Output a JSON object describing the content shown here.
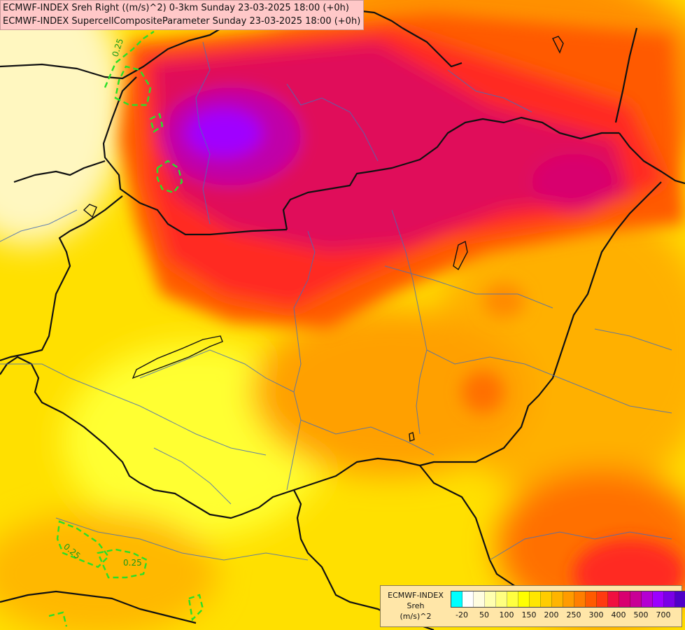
{
  "title": {
    "line1": "ECMWF-INDEX Sreh Right ((m/s)^2) 0-3km Sunday 23-03-2025 18:00 (+0h)",
    "line2": "ECMWF-INDEX SupercellCompositeParameter Sunday 23-03-2025 18:00 (+0h)"
  },
  "legend": {
    "name_line1": "ECMWF-INDEX",
    "name_line2": "Sreh",
    "name_line3": "(m/s)^2",
    "colors": [
      "#00ffff",
      "#ffffff",
      "#fffde0",
      "#ffffb0",
      "#ffff80",
      "#ffff40",
      "#ffff00",
      "#ffe600",
      "#ffcc00",
      "#ffb400",
      "#ff9b00",
      "#ff7e00",
      "#ff5a00",
      "#ff3a10",
      "#f01040",
      "#d80070",
      "#c80096",
      "#b400d2",
      "#9c00ff",
      "#7a00e6",
      "#5000c8",
      "#2800a0",
      "#000080"
    ],
    "ticks": [
      "-20",
      "50",
      "100",
      "150",
      "200",
      "250",
      "300",
      "400",
      "500",
      "700"
    ]
  },
  "scp_labels": [
    "0.25",
    "0.25",
    "0.25"
  ]
}
